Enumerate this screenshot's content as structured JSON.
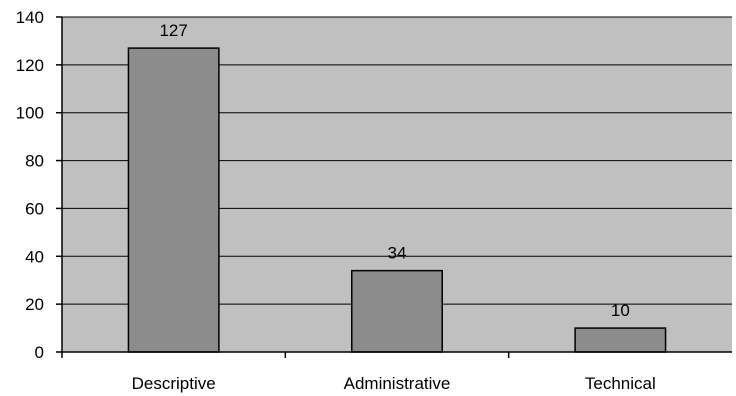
{
  "chart_data": {
    "type": "bar",
    "title": "",
    "xlabel": "",
    "ylabel": "",
    "categories": [
      "Descriptive",
      "Administrative",
      "Technical"
    ],
    "values": [
      127,
      34,
      10
    ],
    "data_labels": [
      "127",
      "34",
      "10"
    ],
    "ylim": [
      0,
      140
    ],
    "yticks": [
      0,
      20,
      40,
      60,
      80,
      100,
      120,
      140
    ],
    "ytick_labels": [
      "0",
      "20",
      "40",
      "60",
      "80",
      "100",
      "120",
      "140"
    ],
    "grid": true,
    "legend": "none",
    "colors": {
      "plot_background": "#c0c0c0",
      "bar_fill": "#8c8c8c",
      "bar_stroke": "#000000",
      "gridline": "#000000",
      "axis": "#000000"
    }
  }
}
